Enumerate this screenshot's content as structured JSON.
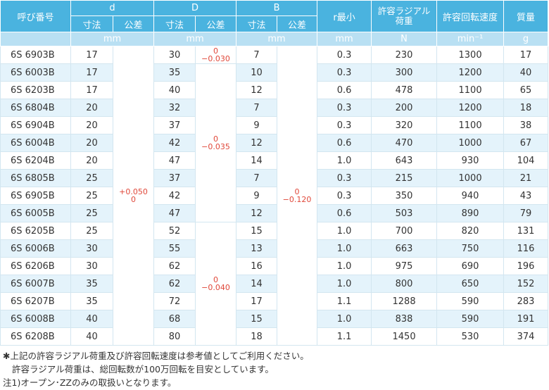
{
  "table": {
    "header": {
      "name": "呼び番号",
      "d": "d",
      "D": "D",
      "B": "B",
      "size": "寸法",
      "tol": "公差",
      "r": "r最小",
      "load": "許容ラジアル\n荷重",
      "speed": "許容回転速度",
      "mass": "質量"
    },
    "units": {
      "d": "mm",
      "D": "mm",
      "B": "mm",
      "r": "mm",
      "load": "N",
      "speed": "min⁻¹",
      "mass": "g"
    },
    "rows": [
      [
        "6S 6903B",
        "17",
        "30",
        "7",
        "0.3",
        "230",
        "1300",
        "17"
      ],
      [
        "6S 6003B",
        "17",
        "35",
        "10",
        "0.3",
        "300",
        "1200",
        "40"
      ],
      [
        "6S 6203B",
        "17",
        "40",
        "12",
        "0.6",
        "478",
        "1100",
        "65"
      ],
      [
        "6S 6804B",
        "20",
        "32",
        "7",
        "0.3",
        "200",
        "1200",
        "18"
      ],
      [
        "6S 6904B",
        "20",
        "37",
        "9",
        "0.3",
        "320",
        "1100",
        "38"
      ],
      [
        "6S 6004B",
        "20",
        "42",
        "12",
        "0.6",
        "470",
        "1000",
        "67"
      ],
      [
        "6S 6204B",
        "20",
        "47",
        "14",
        "1.0",
        "643",
        "930",
        "104"
      ],
      [
        "6S 6805B",
        "25",
        "37",
        "7",
        "0.3",
        "215",
        "1000",
        "21"
      ],
      [
        "6S 6905B",
        "25",
        "42",
        "9",
        "0.3",
        "350",
        "940",
        "43"
      ],
      [
        "6S 6005B",
        "25",
        "47",
        "12",
        "0.6",
        "503",
        "890",
        "79"
      ],
      [
        "6S 6205B",
        "25",
        "52",
        "15",
        "1.0",
        "700",
        "820",
        "131"
      ],
      [
        "6S 6006B",
        "30",
        "55",
        "13",
        "1.0",
        "663",
        "750",
        "116"
      ],
      [
        "6S 6206B",
        "30",
        "62",
        "16",
        "1.0",
        "975",
        "690",
        "196"
      ],
      [
        "6S 6007B",
        "35",
        "62",
        "14",
        "1.0",
        "800",
        "650",
        "152"
      ],
      [
        "6S 6207B",
        "35",
        "72",
        "17",
        "1.1",
        "1288",
        "590",
        "283"
      ],
      [
        "6S 6008B",
        "40",
        "68",
        "15",
        "1.0",
        "838",
        "590",
        "191"
      ],
      [
        "6S 6208B",
        "40",
        "80",
        "18",
        "1.1",
        "1450",
        "530",
        "374"
      ]
    ],
    "tolerances": {
      "d": [
        "+0.050",
        "0"
      ],
      "D": [
        [
          "0",
          "−0.030"
        ],
        [
          "0",
          "−0.035"
        ],
        [
          "0",
          "−0.040"
        ]
      ],
      "B": [
        "0",
        "−0.120"
      ]
    }
  },
  "notes": [
    "✱上記の許容ラジアル荷重及び許容回転速度は参考値としてご利用ください。",
    "許容ラジアル荷重は、総回転数が100万回転を目安としています。",
    "注1)オープン･ZZのみの取扱いとなります。"
  ]
}
